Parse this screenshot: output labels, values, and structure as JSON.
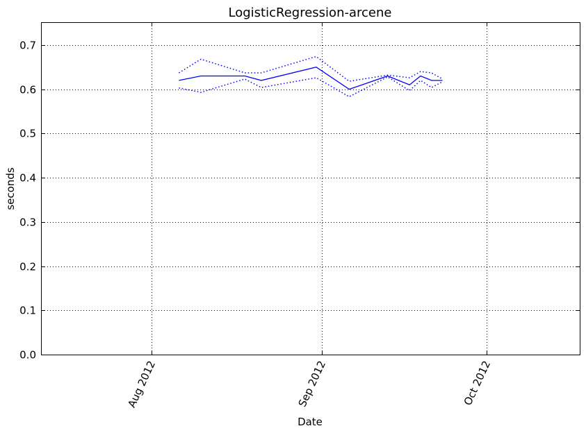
{
  "chart_data": {
    "type": "line",
    "title": "LogisticRegression-arcene",
    "xlabel": "Date",
    "ylabel": "seconds",
    "x_type": "date",
    "xlim": [
      "2012-07-12",
      "2012-10-18"
    ],
    "ylim": [
      0.0,
      0.75
    ],
    "grid": true,
    "line_color": "#0000ff",
    "y_ticks": [
      {
        "value": 0.0,
        "label": "0.0"
      },
      {
        "value": 0.1,
        "label": "0.1"
      },
      {
        "value": 0.2,
        "label": "0.2"
      },
      {
        "value": 0.3,
        "label": "0.3"
      },
      {
        "value": 0.4,
        "label": "0.4"
      },
      {
        "value": 0.5,
        "label": "0.5"
      },
      {
        "value": 0.6,
        "label": "0.6"
      },
      {
        "value": 0.7,
        "label": "0.7"
      }
    ],
    "x_ticks": [
      {
        "value": "2012-08-01",
        "label": "Aug 2012"
      },
      {
        "value": "2012-09-01",
        "label": "Sep 2012"
      },
      {
        "value": "2012-10-01",
        "label": "Oct 2012"
      }
    ],
    "x": [
      "2012-08-06",
      "2012-08-10",
      "2012-08-18",
      "2012-08-21",
      "2012-08-31",
      "2012-09-06",
      "2012-09-13",
      "2012-09-17",
      "2012-09-19",
      "2012-09-21",
      "2012-09-23"
    ],
    "series": [
      {
        "role": "mean",
        "style": "solid",
        "values": [
          0.62,
          0.63,
          0.63,
          0.62,
          0.65,
          0.6,
          0.63,
          0.61,
          0.63,
          0.62,
          0.62
        ]
      },
      {
        "role": "upper",
        "style": "dotted",
        "values": [
          0.637,
          0.668,
          0.637,
          0.637,
          0.674,
          0.618,
          0.632,
          0.626,
          0.64,
          0.637,
          0.623
        ]
      },
      {
        "role": "lower",
        "style": "dotted",
        "values": [
          0.603,
          0.593,
          0.623,
          0.604,
          0.626,
          0.583,
          0.628,
          0.597,
          0.62,
          0.604,
          0.617
        ]
      }
    ]
  }
}
